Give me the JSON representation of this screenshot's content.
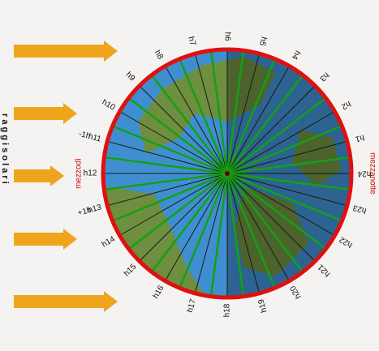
{
  "side_label": "r a g g i   s o l a r i",
  "hours": [
    "h1",
    "h2",
    "h3",
    "h4",
    "h5",
    "h6",
    "h7",
    "h8",
    "h9",
    "h10",
    "h11",
    "h12",
    "h13",
    "h14",
    "h15",
    "h16",
    "h17",
    "h18",
    "h19",
    "h20",
    "h21",
    "h22",
    "h23",
    "h24"
  ],
  "offsets": {
    "h11": "-1h",
    "h13": "+1h"
  },
  "noon_label": "mezzodì",
  "midnight_label": "mezzanotte"
}
